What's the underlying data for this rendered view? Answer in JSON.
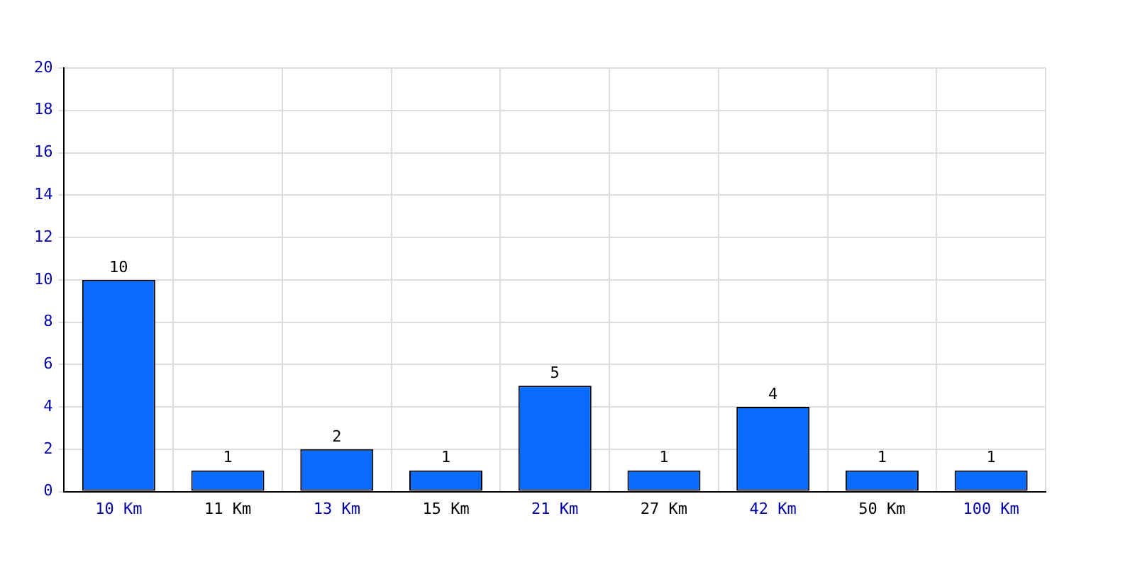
{
  "chart_data": {
    "type": "bar",
    "categories": [
      "10 Km",
      "11 Km",
      "13 Km",
      "15 Km",
      "21 Km",
      "27 Km",
      "42 Km",
      "50 Km",
      "100 Km"
    ],
    "values": [
      10,
      1,
      2,
      1,
      5,
      1,
      4,
      1,
      1
    ],
    "color": "#0a6cff",
    "ylim": [
      0,
      20
    ],
    "yticks": [
      0,
      2,
      4,
      6,
      8,
      10,
      12,
      14,
      16,
      18,
      20
    ],
    "grid": true,
    "data_labels": true,
    "legend": false
  }
}
